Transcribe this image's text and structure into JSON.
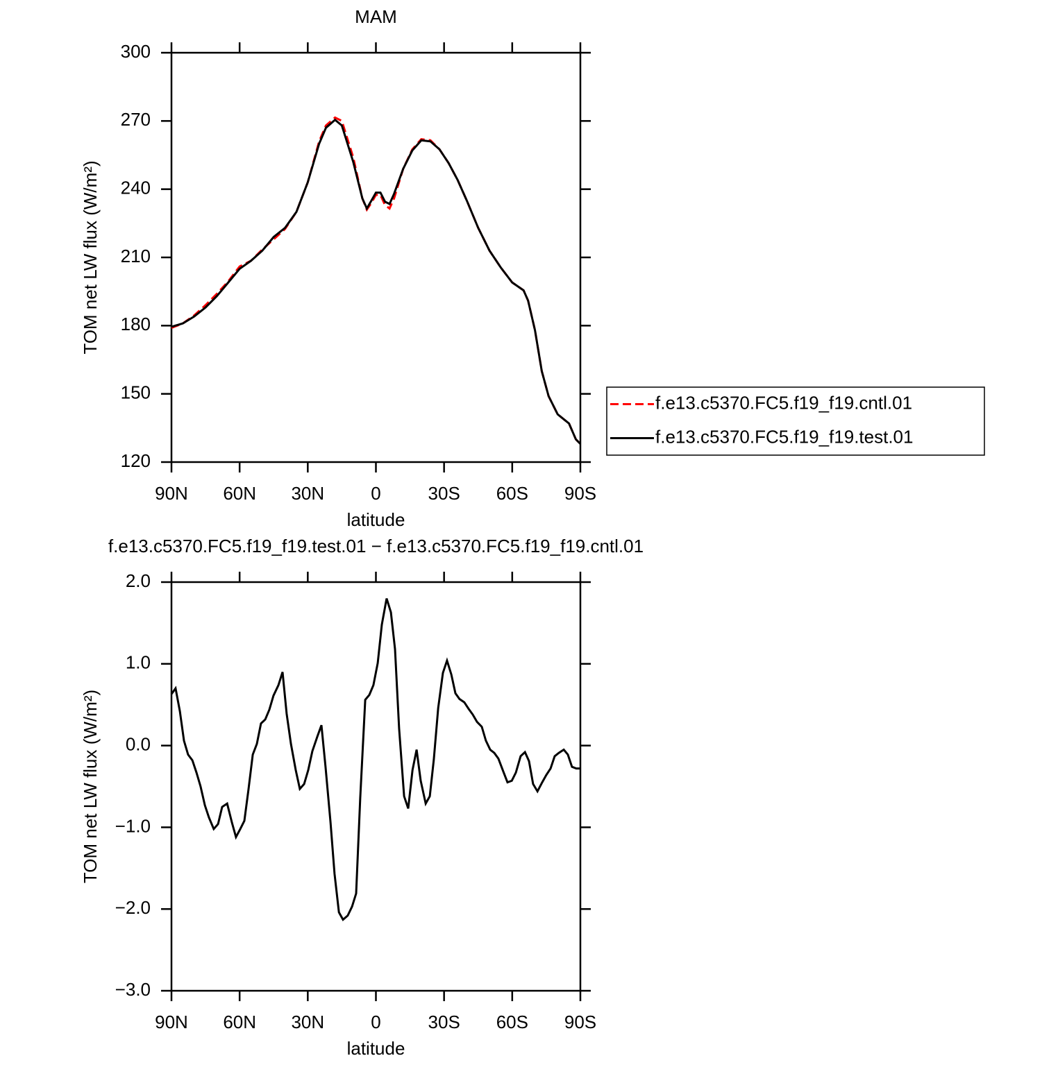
{
  "chart_data": [
    {
      "type": "line",
      "title": "MAM",
      "xlabel": "latitude",
      "ylabel": "TOM net LW flux (W/m²)",
      "xlim": [
        90,
        -90
      ],
      "xticks": [
        {
          "value": 90,
          "label": "90N"
        },
        {
          "value": 60,
          "label": "60N"
        },
        {
          "value": 30,
          "label": "30N"
        },
        0,
        {
          "value": -30,
          "label": "30S"
        },
        {
          "value": -60,
          "label": "60S"
        },
        {
          "value": -90,
          "label": "90S"
        }
      ],
      "ylim": [
        120,
        300
      ],
      "yticks": [
        120,
        150,
        180,
        210,
        240,
        270,
        300
      ],
      "legend": "right",
      "x": [
        90,
        85,
        80,
        75,
        70,
        65,
        60,
        55,
        50,
        45,
        40,
        35,
        30,
        25,
        22,
        18,
        15,
        10,
        6,
        4,
        2,
        0,
        -2,
        -4,
        -6,
        -8,
        -12,
        -16,
        -20,
        -24,
        -28,
        -32,
        -36,
        -40,
        -45,
        -50,
        -55,
        -60,
        -65,
        -67,
        -70,
        -73,
        -76,
        -80,
        -85,
        -88,
        -90
      ],
      "series": [
        {
          "name": "f.e13.c5370.FC5.f19_f19.cntl.01",
          "color": "#ff0000",
          "dash": true,
          "values": [
            179,
            181,
            184.5,
            189,
            194,
            199.5,
            206,
            208.5,
            213.5,
            218,
            222.5,
            230,
            243,
            261,
            268,
            271.5,
            270,
            254,
            236,
            231,
            234,
            237.5,
            237.5,
            233,
            231.5,
            236,
            249,
            257.5,
            262,
            261.5,
            257.5,
            251.5,
            244,
            235,
            223,
            213,
            205.5,
            199,
            195.5,
            191,
            178,
            160,
            149,
            141,
            137,
            130,
            128
          ]
        },
        {
          "name": "f.e13.c5370.FC5.f19_f19.test.01",
          "color": "#000000",
          "dash": false,
          "values": [
            179.5,
            181,
            184,
            188,
            193,
            199,
            205,
            208.5,
            213,
            219,
            223,
            230,
            243,
            260,
            267,
            270.5,
            268,
            252,
            236,
            231.5,
            235,
            238.5,
            238.5,
            234.5,
            233.5,
            238,
            249,
            257,
            261.5,
            261,
            257.5,
            251.5,
            244,
            235,
            223,
            213,
            205.5,
            199,
            195.5,
            191,
            178,
            160,
            149,
            141,
            137,
            130,
            128
          ]
        }
      ]
    },
    {
      "type": "line",
      "title": "f.e13.c5370.FC5.f19_f19.test.01 − f.e13.c5370.FC5.f19_f19.cntl.01",
      "xlabel": "latitude",
      "ylabel": "TOM net LW flux (W/m²)",
      "xlim": [
        90,
        -90
      ],
      "xticks": [
        {
          "value": 90,
          "label": "90N"
        },
        {
          "value": 60,
          "label": "60N"
        },
        {
          "value": 30,
          "label": "30N"
        },
        0,
        {
          "value": -30,
          "label": "30S"
        },
        {
          "value": -60,
          "label": "60S"
        },
        {
          "value": -90,
          "label": "90S"
        }
      ],
      "ylim": [
        -3,
        2
      ],
      "yticks": [
        {
          "value": -3,
          "label": "−3.0"
        },
        {
          "value": -2,
          "label": "−2.0"
        },
        {
          "value": -1,
          "label": "−1.0"
        },
        {
          "value": 0,
          "label": "0.0"
        },
        {
          "value": 1,
          "label": "1.0"
        },
        {
          "value": 2,
          "label": "2.0"
        }
      ],
      "x": [
        90,
        88.2,
        86.3,
        84.5,
        82.7,
        80.8,
        79,
        77.2,
        75.3,
        73.5,
        71.4,
        69.5,
        67.7,
        65.5,
        63.4,
        61.6,
        59.7,
        57.9,
        56.1,
        54.2,
        52.4,
        50.6,
        48.7,
        46.9,
        45.1,
        42.9,
        41.1,
        39.3,
        37.4,
        35.3,
        33.5,
        31.6,
        29.8,
        28,
        25.8,
        24,
        22.2,
        20,
        18.2,
        16.3,
        14.5,
        12.4,
        10.5,
        8.7,
        6.9,
        4.7,
        2.9,
        1.1,
        -0.8,
        -2.6,
        -4.7,
        -6.6,
        -8.4,
        -10.2,
        -12.4,
        -14.2,
        -16.1,
        -17.9,
        -19.7,
        -21.9,
        -23.7,
        -25.5,
        -27.4,
        -29.5,
        -31.3,
        -33.2,
        -35,
        -36.8,
        -38.9,
        -40.8,
        -42.6,
        -44.5,
        -46.6,
        -48.4,
        -50.3,
        -52.1,
        -53.9,
        -56.1,
        -57.9,
        -59.8,
        -61.6,
        -63.7,
        -65.6,
        -67.4,
        -69.2,
        -71.1,
        -73.2,
        -75,
        -76.9,
        -78.7,
        -80.5,
        -82.7,
        -84.5,
        -86.3,
        -88.2,
        -90
      ],
      "series": [
        {
          "color": "#000000",
          "dash": false,
          "values": [
            0.63,
            0.7,
            0.42,
            0.06,
            -0.11,
            -0.18,
            -0.33,
            -0.5,
            -0.73,
            -0.88,
            -1.02,
            -0.96,
            -0.75,
            -0.71,
            -0.94,
            -1.12,
            -1.02,
            -0.92,
            -0.54,
            -0.11,
            0.02,
            0.27,
            0.32,
            0.44,
            0.61,
            0.74,
            0.9,
            0.39,
            0.02,
            -0.3,
            -0.53,
            -0.47,
            -0.3,
            -0.07,
            0.11,
            0.25,
            -0.26,
            -0.94,
            -1.57,
            -2.04,
            -2.13,
            -2.08,
            -1.97,
            -1.81,
            -0.64,
            0.56,
            0.62,
            0.74,
            1.01,
            1.48,
            1.8,
            1.63,
            1.18,
            0.21,
            -0.62,
            -0.77,
            -0.3,
            -0.05,
            -0.43,
            -0.71,
            -0.62,
            -0.17,
            0.46,
            0.89,
            1.04,
            0.87,
            0.64,
            0.57,
            0.53,
            0.45,
            0.38,
            0.29,
            0.23,
            0.06,
            -0.05,
            -0.09,
            -0.16,
            -0.32,
            -0.45,
            -0.43,
            -0.33,
            -0.13,
            -0.08,
            -0.19,
            -0.47,
            -0.56,
            -0.45,
            -0.36,
            -0.28,
            -0.13,
            -0.09,
            -0.05,
            -0.11,
            -0.26,
            -0.28,
            -0.28
          ]
        }
      ]
    }
  ]
}
